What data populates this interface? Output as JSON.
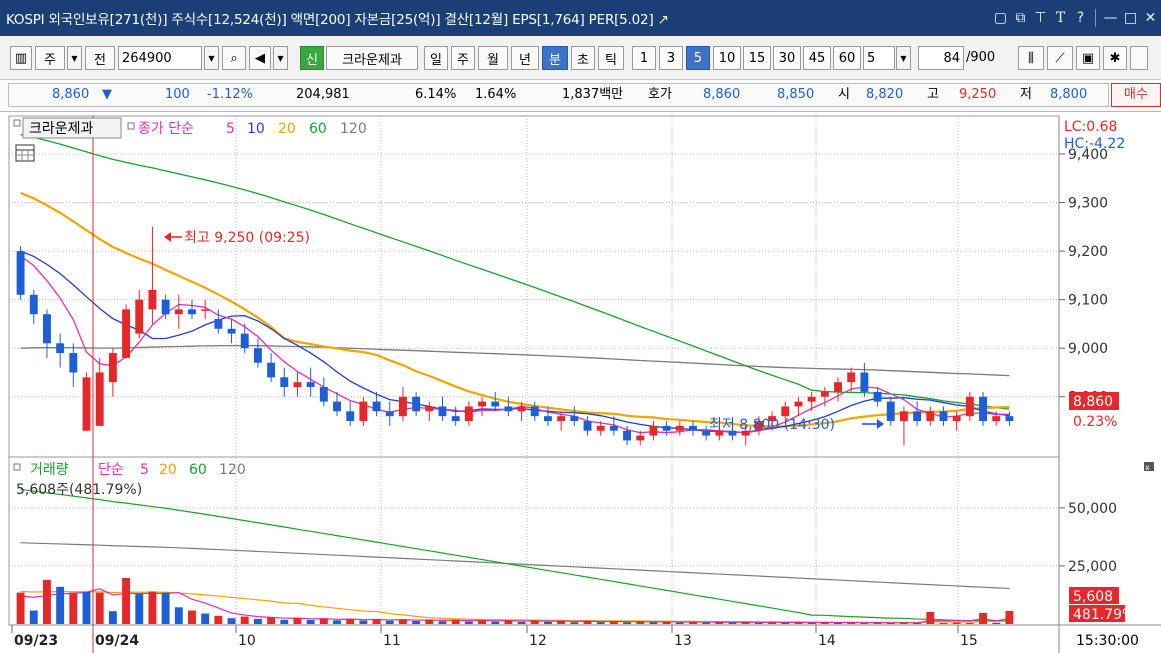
{
  "title_bar": {
    "text": "KOSPI 외국인보유[271(천)] 주식수[12,524(천)] 액면[200] 자본금[25(억)] 결산[12월] EPS[1,764] PER[5.02] ↗",
    "icons": [
      "restore-window-icon",
      "new-window-icon",
      "pin-icon",
      "font-icon",
      "help-icon",
      "minimize-icon",
      "maximize-icon",
      "close-icon"
    ]
  },
  "toolbar": {
    "mode_buttons": [
      "주",
      "전"
    ],
    "code": "264900",
    "stock_tag": "신",
    "stock_name": "크라운제과",
    "period_buttons": [
      "일",
      "주",
      "월",
      "년",
      "분",
      "초",
      "틱"
    ],
    "selected_period": "분",
    "interval_buttons": [
      "1",
      "3",
      "5",
      "10",
      "15",
      "30",
      "45",
      "60"
    ],
    "selected_interval": "5",
    "interval_value": "5",
    "count": "84",
    "count_total": "/900"
  },
  "quote": {
    "price": "8,860",
    "change_arrow": "▼",
    "change": "100",
    "change_pct": "-1.12%",
    "volume": "204,981",
    "turnover_pct": "6.14%",
    "ratio": "1.64%",
    "amount": "1,837백만",
    "bid_label": "호가",
    "ask": "8,860",
    "bid": "8,850",
    "open_label": "시",
    "open": "8,820",
    "high_label": "고",
    "high": "9,250",
    "low_label": "저",
    "low": "8,800",
    "trade_button": "매수"
  },
  "colors": {
    "up": "#e6282a",
    "down": "#1e5fd6",
    "ma5": "#e02fb4",
    "ma10": "#1f3fc8",
    "ma20": "#f0a500",
    "ma60": "#17a32c",
    "ma120": "#7a7a7a",
    "title_bg": "#1a3f77"
  },
  "chart_data": [
    {
      "type": "candlestick",
      "legend": {
        "stock": "크라운제과",
        "price_label": "종가 단순",
        "ma_periods": [
          "5",
          "10",
          "20",
          "60",
          "120"
        ]
      },
      "lc": "LC:0.68",
      "hc": "HC:-4.22",
      "y_ticks": [
        "9,400",
        "9,300",
        "9,200",
        "9,100",
        "9,000",
        "8,900"
      ],
      "current_price_tag": "8,860",
      "current_pct_tag": "0.23%",
      "annotations": {
        "high_text": "최고 9,250 (09:25)",
        "low_text": "최저 8,800 (14:30)"
      },
      "ylim": [
        8780,
        9470
      ],
      "candles": [
        [
          9200,
          9210,
          9100,
          9110
        ],
        [
          9110,
          9120,
          9050,
          9070
        ],
        [
          9070,
          9080,
          8980,
          9010
        ],
        [
          9010,
          9030,
          8960,
          8990
        ],
        [
          8990,
          9010,
          8920,
          8950
        ],
        [
          8830,
          8950,
          8830,
          8940
        ],
        [
          8840,
          8980,
          8840,
          8950
        ],
        [
          8930,
          9000,
          8900,
          8990
        ],
        [
          8980,
          9090,
          8980,
          9080
        ],
        [
          9030,
          9120,
          9020,
          9100
        ],
        [
          9080,
          9250,
          9050,
          9120
        ],
        [
          9100,
          9110,
          9060,
          9070
        ],
        [
          9070,
          9110,
          9040,
          9080
        ],
        [
          9080,
          9100,
          9060,
          9070
        ],
        [
          9080,
          9100,
          9060,
          9080
        ],
        [
          9060,
          9080,
          9030,
          9040
        ],
        [
          9040,
          9060,
          9010,
          9030
        ],
        [
          9030,
          9050,
          8990,
          9000
        ],
        [
          9000,
          9020,
          8960,
          8970
        ],
        [
          8970,
          8990,
          8930,
          8940
        ],
        [
          8940,
          8960,
          8900,
          8920
        ],
        [
          8920,
          8950,
          8900,
          8930
        ],
        [
          8930,
          8960,
          8900,
          8920
        ],
        [
          8920,
          8940,
          8880,
          8890
        ],
        [
          8890,
          8910,
          8860,
          8870
        ],
        [
          8870,
          8890,
          8840,
          8850
        ],
        [
          8850,
          8900,
          8840,
          8890
        ],
        [
          8890,
          8910,
          8860,
          8870
        ],
        [
          8870,
          8890,
          8840,
          8860
        ],
        [
          8860,
          8920,
          8850,
          8900
        ],
        [
          8900,
          8910,
          8860,
          8870
        ],
        [
          8870,
          8890,
          8850,
          8880
        ],
        [
          8880,
          8900,
          8850,
          8860
        ],
        [
          8860,
          8880,
          8840,
          8850
        ],
        [
          8850,
          8890,
          8840,
          8880
        ],
        [
          8880,
          8900,
          8860,
          8890
        ],
        [
          8890,
          8910,
          8870,
          8880
        ],
        [
          8880,
          8900,
          8860,
          8870
        ],
        [
          8870,
          8890,
          8850,
          8880
        ],
        [
          8880,
          8890,
          8850,
          8860
        ],
        [
          8860,
          8880,
          8840,
          8850
        ],
        [
          8850,
          8870,
          8830,
          8860
        ],
        [
          8860,
          8880,
          8840,
          8850
        ],
        [
          8850,
          8860,
          8820,
          8830
        ],
        [
          8830,
          8850,
          8820,
          8840
        ],
        [
          8840,
          8860,
          8820,
          8830
        ],
        [
          8830,
          8840,
          8800,
          8810
        ],
        [
          8810,
          8830,
          8800,
          8820
        ],
        [
          8820,
          8850,
          8810,
          8840
        ],
        [
          8840,
          8850,
          8820,
          8830
        ],
        [
          8830,
          8850,
          8820,
          8840
        ],
        [
          8840,
          8850,
          8820,
          8830
        ],
        [
          8830,
          8840,
          8810,
          8820
        ],
        [
          8820,
          8840,
          8810,
          8830
        ],
        [
          8830,
          8840,
          8810,
          8820
        ],
        [
          8820,
          8840,
          8800,
          8830
        ],
        [
          8830,
          8860,
          8820,
          8850
        ],
        [
          8850,
          8870,
          8830,
          8860
        ],
        [
          8860,
          8890,
          8850,
          8880
        ],
        [
          8880,
          8900,
          8860,
          8890
        ],
        [
          8890,
          8910,
          8870,
          8900
        ],
        [
          8900,
          8920,
          8880,
          8910
        ],
        [
          8910,
          8940,
          8890,
          8930
        ],
        [
          8930,
          8960,
          8910,
          8950
        ],
        [
          8950,
          8970,
          8900,
          8910
        ],
        [
          8910,
          8920,
          8880,
          8890
        ],
        [
          8890,
          8900,
          8840,
          8850
        ],
        [
          8850,
          8880,
          8800,
          8870
        ],
        [
          8870,
          8890,
          8840,
          8850
        ],
        [
          8850,
          8880,
          8840,
          8870
        ],
        [
          8870,
          8880,
          8840,
          8850
        ],
        [
          8850,
          8870,
          8830,
          8860
        ],
        [
          8860,
          8910,
          8850,
          8900
        ],
        [
          8900,
          8910,
          8840,
          8850
        ],
        [
          8850,
          8870,
          8840,
          8860
        ],
        [
          8860,
          8870,
          8840,
          8850
        ]
      ]
    },
    {
      "type": "bar",
      "legend": {
        "label": "거래량",
        "ma_label": "단순",
        "ma_periods": [
          "5",
          "20",
          "60",
          "120"
        ]
      },
      "last_volume": "5,608주(481.79%)",
      "y_ticks": [
        "50,000",
        "25,000"
      ],
      "current_tag": "5,608",
      "current_pct_tag": "481.79%",
      "ylim": [
        0,
        62000
      ],
      "values": [
        13500,
        5800,
        19000,
        16000,
        13500,
        13800,
        13500,
        5500,
        19800,
        13000,
        14000,
        13500,
        7200,
        5800,
        4500,
        3500,
        2500,
        3200,
        2200,
        2800,
        1800,
        2600,
        1700,
        2400,
        1600,
        2200,
        1500,
        2100,
        1400,
        2000,
        1300,
        1900,
        1200,
        1800,
        1100,
        1700,
        1000,
        1600,
        900,
        1500,
        900,
        1400,
        800,
        1300,
        800,
        1200,
        700,
        1100,
        700,
        1000,
        600,
        1000,
        600,
        900,
        600,
        900,
        500,
        800,
        500,
        800,
        500,
        700,
        500,
        700,
        400,
        600,
        400,
        600,
        400,
        5200,
        400,
        600,
        400,
        4800,
        500,
        5608
      ],
      "up_flags": [
        1,
        0,
        1,
        0,
        1,
        0,
        1,
        0,
        1,
        0,
        1,
        0,
        0,
        1,
        0,
        1,
        0,
        1,
        0,
        1,
        0,
        1,
        0,
        1,
        0,
        1,
        0,
        1,
        0,
        1,
        0,
        1,
        0,
        1,
        0,
        1,
        0,
        1,
        0,
        1,
        0,
        1,
        0,
        1,
        0,
        1,
        0,
        1,
        0,
        1,
        0,
        1,
        0,
        1,
        0,
        1,
        0,
        1,
        0,
        1,
        0,
        1,
        0,
        1,
        0,
        1,
        0,
        1,
        0,
        1,
        0,
        1,
        0,
        1,
        0,
        1
      ]
    }
  ],
  "x_axis": {
    "labels": [
      "09/23",
      "09/24",
      "10",
      "11",
      "12",
      "13",
      "14",
      "15"
    ],
    "time": "15:30:00"
  }
}
